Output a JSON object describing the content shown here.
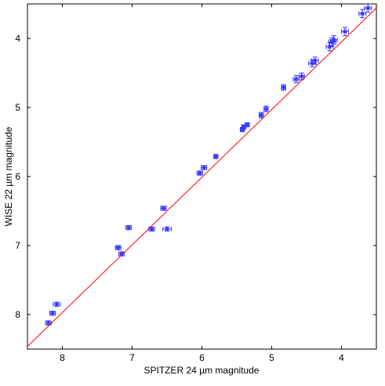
{
  "chart_data": {
    "type": "scatter",
    "title": "",
    "xlabel": "SPITZER 24 µm magnitude",
    "ylabel": "WISE 22 µm magnitude",
    "x_reversed": true,
    "y_reversed": true,
    "xlim": [
      8.5,
      3.5
    ],
    "ylim": [
      8.5,
      3.5
    ],
    "xticks": [
      8,
      7,
      6,
      5,
      4
    ],
    "yticks": [
      4,
      5,
      6,
      7,
      8
    ],
    "grid": false,
    "legend": "none",
    "colors": {
      "points": "#3333ff",
      "fit_line": "#ff0000",
      "axes": "#000000"
    },
    "fit_line": {
      "x": [
        8.5,
        3.5
      ],
      "y": [
        8.46,
        3.56
      ]
    },
    "points": [
      {
        "x": 8.2,
        "y": 8.12,
        "xerr": 0.04,
        "yerr": 0.03
      },
      {
        "x": 8.14,
        "y": 7.98,
        "xerr": 0.04,
        "yerr": 0.03
      },
      {
        "x": 8.08,
        "y": 7.85,
        "xerr": 0.05,
        "yerr": 0.03
      },
      {
        "x": 7.2,
        "y": 7.03,
        "xerr": 0.04,
        "yerr": 0.03
      },
      {
        "x": 7.15,
        "y": 7.12,
        "xerr": 0.04,
        "yerr": 0.03
      },
      {
        "x": 7.05,
        "y": 6.74,
        "xerr": 0.04,
        "yerr": 0.03
      },
      {
        "x": 6.72,
        "y": 6.76,
        "xerr": 0.04,
        "yerr": 0.03
      },
      {
        "x": 6.5,
        "y": 6.76,
        "xerr": 0.06,
        "yerr": 0.03
      },
      {
        "x": 6.55,
        "y": 6.46,
        "xerr": 0.04,
        "yerr": 0.03
      },
      {
        "x": 6.03,
        "y": 5.95,
        "xerr": 0.04,
        "yerr": 0.03
      },
      {
        "x": 5.97,
        "y": 5.87,
        "xerr": 0.04,
        "yerr": 0.03
      },
      {
        "x": 5.8,
        "y": 5.71,
        "xerr": 0.03,
        "yerr": 0.03
      },
      {
        "x": 5.42,
        "y": 5.32,
        "xerr": 0.03,
        "yerr": 0.03
      },
      {
        "x": 5.4,
        "y": 5.28,
        "xerr": 0.03,
        "yerr": 0.03
      },
      {
        "x": 5.35,
        "y": 5.25,
        "xerr": 0.03,
        "yerr": 0.03
      },
      {
        "x": 5.15,
        "y": 5.11,
        "xerr": 0.03,
        "yerr": 0.04
      },
      {
        "x": 5.08,
        "y": 5.02,
        "xerr": 0.03,
        "yerr": 0.04
      },
      {
        "x": 4.83,
        "y": 4.71,
        "xerr": 0.03,
        "yerr": 0.04
      },
      {
        "x": 4.65,
        "y": 4.59,
        "xerr": 0.04,
        "yerr": 0.05
      },
      {
        "x": 4.57,
        "y": 4.55,
        "xerr": 0.04,
        "yerr": 0.05
      },
      {
        "x": 4.42,
        "y": 4.36,
        "xerr": 0.05,
        "yerr": 0.05
      },
      {
        "x": 4.38,
        "y": 4.32,
        "xerr": 0.05,
        "yerr": 0.05
      },
      {
        "x": 4.17,
        "y": 4.12,
        "xerr": 0.05,
        "yerr": 0.06
      },
      {
        "x": 4.13,
        "y": 4.05,
        "xerr": 0.05,
        "yerr": 0.06
      },
      {
        "x": 4.11,
        "y": 4.02,
        "xerr": 0.05,
        "yerr": 0.06
      },
      {
        "x": 3.95,
        "y": 3.9,
        "xerr": 0.05,
        "yerr": 0.06
      },
      {
        "x": 3.7,
        "y": 3.64,
        "xerr": 0.05,
        "yerr": 0.06
      },
      {
        "x": 3.62,
        "y": 3.56,
        "xerr": 0.05,
        "yerr": 0.06
      }
    ]
  }
}
